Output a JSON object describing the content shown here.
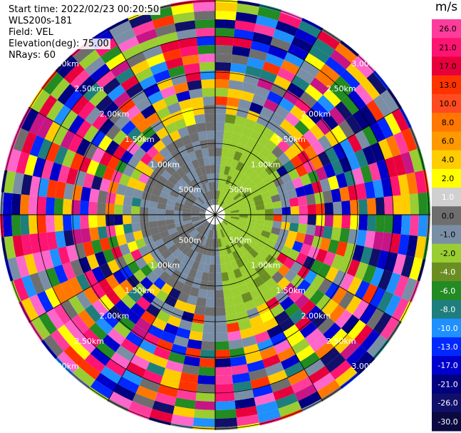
{
  "header": {
    "start_time": "Start time: 2022/02/23 00:20:50",
    "instrument": "WLS200s-181",
    "field": "Field: VEL",
    "elevation": "Elevation(deg): 75.00",
    "nrays": "NRays: 60"
  },
  "chart_data": {
    "type": "heatmap",
    "projection": "polar PPI",
    "field": "VEL",
    "units": "m/s",
    "nrays": 60,
    "range_rings_km": [
      0.5,
      1.0,
      1.5,
      2.0,
      2.5,
      3.0
    ],
    "range_ring_labels": [
      "500m",
      "1.00km",
      "1.50km",
      "2.00km",
      "2.50km",
      "3.00km"
    ],
    "max_range_km": 3.3,
    "colorbar": {
      "title": "m/s",
      "tick_labels": [
        "26.0",
        "21.0",
        "17.0",
        "13.0",
        "10.0",
        "8.0",
        "6.0",
        "4.0",
        "2.0",
        "1.0",
        "0.0",
        "-1.0",
        "-2.0",
        "-4.0",
        "-6.0",
        "-8.0",
        "-10.0",
        "-13.0",
        "-17.0",
        "-21.0",
        "-26.0",
        "-30.0"
      ],
      "colors": [
        "#ff3c9c",
        "#fe1472",
        "#e8003c",
        "#ff3300",
        "#ff4b1f",
        "#ff7700",
        "#ff9900",
        "#ffcc00",
        "#ffff00",
        "#d0d0d0",
        "#6e6e6e",
        "#7a8fa6",
        "#9acd32",
        "#6b8e23",
        "#228b22",
        "#1e7d7d",
        "#1e90ff",
        "#0028ff",
        "#0000cd",
        "#000080",
        "#10106a",
        "#0a0a40"
      ]
    },
    "near_field": {
      "slow_values_gray": [
        0.0,
        1.0,
        -1.0
      ],
      "approaching_side": "east",
      "approaching_color_value": -2.0
    }
  }
}
